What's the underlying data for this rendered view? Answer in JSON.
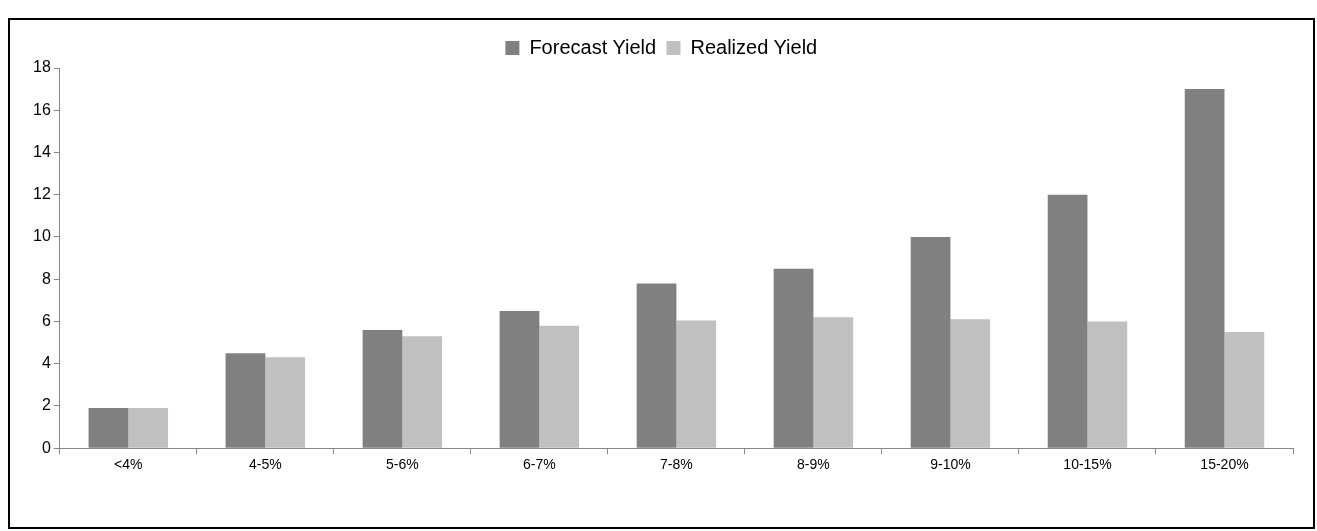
{
  "chart_data": {
    "type": "bar",
    "categories": [
      "<4%",
      "4-5%",
      "5-6%",
      "6-7%",
      "7-8%",
      "8-9%",
      "9-10%",
      "10-15%",
      "15-20%"
    ],
    "series": [
      {
        "name": "Forecast Yield",
        "color": "#808080",
        "values": [
          1.9,
          4.5,
          5.6,
          6.5,
          7.8,
          8.5,
          10,
          12,
          17
        ]
      },
      {
        "name": "Realized Yield",
        "color": "#c0c0c0",
        "values": [
          1.9,
          4.3,
          5.3,
          5.8,
          6.05,
          6.2,
          6.1,
          6.0,
          5.5
        ]
      }
    ],
    "ylim": [
      0,
      18
    ],
    "yticks": [
      0,
      2,
      4,
      6,
      8,
      10,
      12,
      14,
      16,
      18
    ],
    "grid": false,
    "legend": "top"
  }
}
